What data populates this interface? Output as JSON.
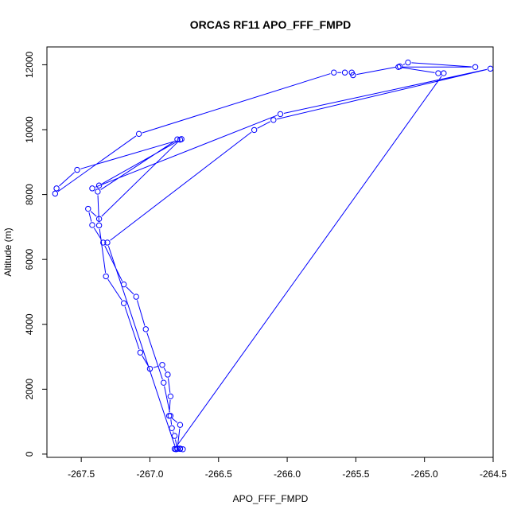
{
  "chart_data": {
    "type": "line",
    "title": "ORCAS RF11 APO_FFF_FMPD",
    "xlabel": "APO_FFF_FMPD",
    "ylabel": "Altitude (m)",
    "xlim": [
      -267.75,
      -264.5
    ],
    "ylim": [
      -100,
      12550
    ],
    "xticks": [
      -267.5,
      -267.0,
      -266.5,
      -266.0,
      -265.5,
      -265.0,
      -264.5
    ],
    "xtick_labels": [
      "-267.5",
      "-267.0",
      "-266.5",
      "-266.0",
      "-265.5",
      "-265.0",
      "-264.5"
    ],
    "yticks": [
      0,
      2000,
      4000,
      6000,
      8000,
      10000,
      12000
    ],
    "ytick_labels": [
      "0",
      "2000",
      "4000",
      "6000",
      "8000",
      "10000",
      "12000"
    ],
    "grid": false,
    "legend": "none",
    "color": "#0000ff",
    "series": [
      {
        "x": [
          -266.78,
          -266.78,
          -266.8,
          -266.82,
          -266.84,
          -266.85,
          -266.9,
          -267.03,
          -267.1,
          -267.19,
          -267.34,
          -267.42,
          -267.45,
          -267.37,
          -266.78,
          -267.53,
          -267.68,
          -267.69,
          -267.08,
          -265.66,
          -265.58,
          -265.53,
          -265.52,
          -265.18,
          -265.12,
          -264.63,
          -265.19,
          -264.9,
          -264.86,
          -266.82,
          -266.8,
          -266.78,
          -266.86,
          -266.85,
          -266.87,
          -266.91,
          -267.0,
          -267.07,
          -267.19,
          -267.32,
          -267.37,
          -267.38,
          -266.8,
          -266.77,
          -267.37,
          -267.42,
          -266.05,
          -264.52,
          -266.1,
          -266.24,
          -267.31,
          -266.81,
          -266.8,
          -266.76
        ],
        "y": [
          160,
          170,
          160,
          560,
          800,
          1180,
          2200,
          3850,
          4850,
          5230,
          6520,
          7060,
          7560,
          7250,
          9690,
          8760,
          8190,
          8030,
          9870,
          11760,
          11760,
          11760,
          11680,
          11950,
          12070,
          11930,
          11930,
          11740,
          11740,
          160,
          170,
          900,
          1180,
          1780,
          2450,
          2750,
          2630,
          3130,
          4650,
          5480,
          7050,
          8090,
          9700,
          9710,
          8280,
          8190,
          10480,
          11880,
          10300,
          9990,
          6520,
          150,
          170,
          150
        ]
      }
    ]
  }
}
